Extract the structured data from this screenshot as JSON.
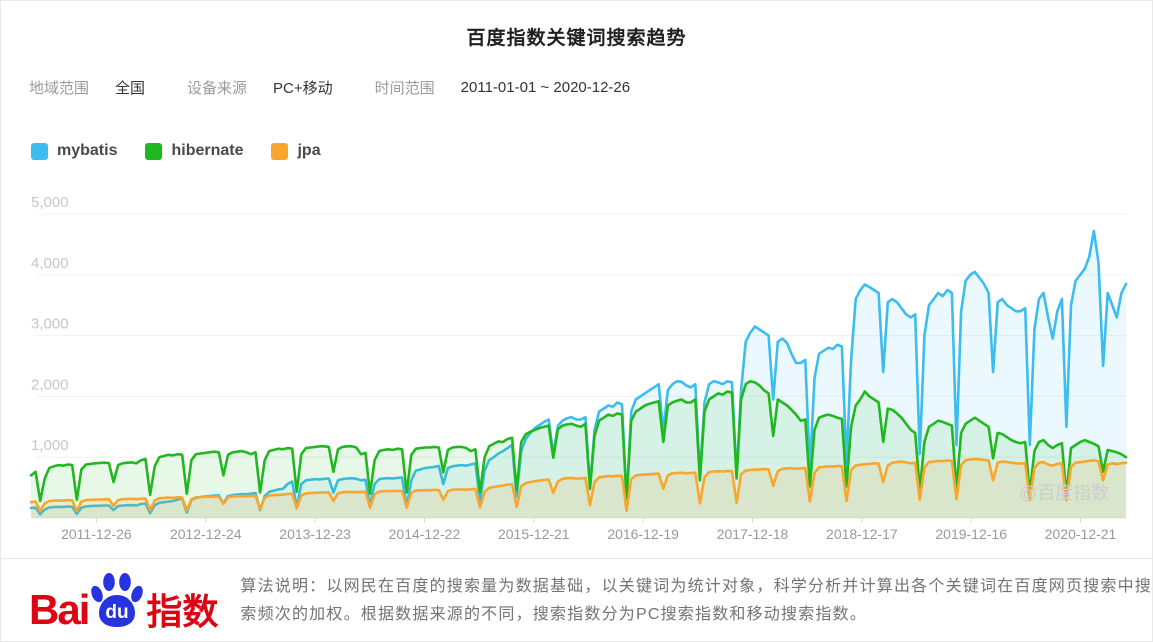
{
  "header": {
    "title": "百度指数关键词搜索趋势"
  },
  "filters": [
    {
      "label": "地域范围",
      "value": "全国"
    },
    {
      "label": "设备来源",
      "value": "PC+移动"
    },
    {
      "label": "时间范围",
      "value": "2011-01-01 ~ 2020-12-26"
    }
  ],
  "legend": [
    {
      "label": "mybatis",
      "color": "#3cbdf0"
    },
    {
      "label": "hibernate",
      "color": "#21b81f"
    },
    {
      "label": "jpa",
      "color": "#f9a62c"
    }
  ],
  "chart_data": {
    "type": "line",
    "title": "百度指数关键词搜索趋势",
    "x_range": "2011-01-01 ~ 2020-12-26",
    "x_tick_labels": [
      "2011-12-26",
      "2012-12-24",
      "2013-12-23",
      "2014-12-22",
      "2015-12-21",
      "2016-12-19",
      "2017-12-18",
      "2018-12-17",
      "2019-12-16",
      "2020-12-21"
    ],
    "y_ticks": [
      1000,
      2000,
      3000,
      4000,
      5000
    ],
    "ylim": [
      0,
      5200
    ],
    "grid": "horizontal",
    "legend_position": "top-left",
    "points_per_year": 24,
    "watermark": "@百度指数",
    "series": [
      {
        "name": "mybatis",
        "color": "#3cbdf0",
        "fill": "rgba(60,189,240,0.10)",
        "values": [
          165,
          170,
          60,
          140,
          175,
          180,
          185,
          180,
          190,
          185,
          65,
          170,
          190,
          195,
          200,
          200,
          205,
          205,
          130,
          195,
          205,
          210,
          210,
          205,
          230,
          240,
          80,
          210,
          250,
          260,
          270,
          280,
          300,
          320,
          90,
          300,
          330,
          345,
          355,
          360,
          370,
          375,
          240,
          360,
          375,
          385,
          395,
          390,
          400,
          410,
          130,
          360,
          430,
          450,
          470,
          480,
          560,
          600,
          180,
          560,
          620,
          630,
          640,
          635,
          645,
          650,
          420,
          620,
          640,
          650,
          655,
          645,
          620,
          630,
          190,
          560,
          640,
          650,
          655,
          650,
          660,
          665,
          190,
          620,
          780,
          800,
          820,
          830,
          840,
          855,
          560,
          820,
          850,
          860,
          870,
          860,
          880,
          900,
          280,
          780,
          950,
          1000,
          1060,
          1100,
          1150,
          1200,
          350,
          1100,
          1300,
          1400,
          1480,
          1530,
          1580,
          1620,
          1050,
          1520,
          1600,
          1640,
          1660,
          1620,
          1620,
          1660,
          520,
          1450,
          1750,
          1800,
          1850,
          1830,
          1900,
          1870,
          300,
          1750,
          1950,
          2000,
          2050,
          2100,
          2150,
          2200,
          1430,
          2100,
          2200,
          2250,
          2240,
          2180,
          2150,
          2200,
          700,
          1900,
          2200,
          2250,
          2230,
          2200,
          2250,
          2230,
          700,
          2100,
          2900,
          3050,
          3150,
          3100,
          3050,
          3000,
          1950,
          2900,
          2950,
          2880,
          2700,
          2550,
          2550,
          2600,
          800,
          2300,
          2700,
          2750,
          2800,
          2780,
          2850,
          2820,
          900,
          2600,
          3600,
          3750,
          3840,
          3800,
          3750,
          3700,
          2400,
          3550,
          3600,
          3550,
          3450,
          3350,
          3300,
          3350,
          1050,
          3000,
          3500,
          3600,
          3700,
          3650,
          3750,
          3700,
          1200,
          3400,
          3900,
          4000,
          4050,
          3950,
          3850,
          3700,
          2400,
          3550,
          3600,
          3500,
          3450,
          3400,
          3400,
          3450,
          1200,
          3100,
          3600,
          3700,
          3300,
          2950,
          3400,
          3600,
          1500,
          3500,
          3900,
          4000,
          4100,
          4300,
          4720,
          4200,
          2500,
          3700,
          3500,
          3300,
          3700,
          3850
        ]
      },
      {
        "name": "hibernate",
        "color": "#21b81f",
        "fill": "rgba(33,184,31,0.10)",
        "values": [
          700,
          760,
          280,
          650,
          820,
          850,
          870,
          860,
          880,
          870,
          300,
          800,
          880,
          890,
          900,
          905,
          910,
          905,
          590,
          870,
          900,
          910,
          915,
          900,
          950,
          970,
          380,
          850,
          1000,
          1020,
          1040,
          1030,
          1050,
          1040,
          400,
          950,
          1050,
          1060,
          1070,
          1080,
          1090,
          1080,
          700,
          1040,
          1080,
          1090,
          1100,
          1080,
          1050,
          1080,
          420,
          950,
          1100,
          1120,
          1140,
          1130,
          1150,
          1140,
          430,
          1050,
          1150,
          1160,
          1170,
          1180,
          1180,
          1170,
          760,
          1130,
          1170,
          1180,
          1180,
          1160,
          1050,
          1070,
          400,
          950,
          1100,
          1120,
          1130,
          1120,
          1140,
          1130,
          420,
          1040,
          1140,
          1150,
          1160,
          1160,
          1170,
          1160,
          750,
          1120,
          1160,
          1170,
          1170,
          1150,
          1100,
          1130,
          420,
          1000,
          1180,
          1220,
          1260,
          1250,
          1300,
          1320,
          450,
          1250,
          1380,
          1420,
          1450,
          1480,
          1500,
          1520,
          990,
          1460,
          1520,
          1540,
          1550,
          1520,
          1500,
          1550,
          480,
          1350,
          1600,
          1650,
          1700,
          1680,
          1720,
          1700,
          300,
          1600,
          1750,
          1800,
          1850,
          1880,
          1900,
          1920,
          1250,
          1850,
          1900,
          1930,
          1950,
          1900,
          1900,
          1950,
          620,
          1750,
          1950,
          2000,
          2050,
          2030,
          2080,
          2060,
          650,
          1950,
          2200,
          2250,
          2230,
          2180,
          2100,
          2050,
          1350,
          1950,
          1900,
          1850,
          1780,
          1700,
          1600,
          1620,
          520,
          1450,
          1650,
          1680,
          1700,
          1680,
          1650,
          1630,
          520,
          1500,
          1850,
          1950,
          2080,
          2000,
          1950,
          1900,
          1250,
          1800,
          1780,
          1720,
          1650,
          1550,
          1450,
          1400,
          450,
          1250,
          1500,
          1550,
          1600,
          1580,
          1550,
          1520,
          480,
          1400,
          1550,
          1600,
          1650,
          1600,
          1550,
          1500,
          980,
          1400,
          1380,
          1330,
          1280,
          1250,
          1230,
          1250,
          400,
          1100,
          1250,
          1280,
          1200,
          1150,
          1200,
          1230,
          380,
          1150,
          1200,
          1250,
          1280,
          1250,
          1220,
          1180,
          760,
          1120,
          1100,
          1080,
          1050,
          1000
        ]
      },
      {
        "name": "jpa",
        "color": "#f9a62c",
        "fill": "rgba(249,166,44,0.14)",
        "values": [
          260,
          270,
          120,
          240,
          280,
          285,
          290,
          285,
          295,
          290,
          120,
          270,
          295,
          300,
          305,
          305,
          310,
          308,
          200,
          295,
          310,
          312,
          315,
          310,
          315,
          320,
          130,
          290,
          325,
          330,
          335,
          330,
          340,
          335,
          130,
          310,
          340,
          345,
          350,
          350,
          355,
          352,
          230,
          340,
          355,
          358,
          360,
          355,
          360,
          365,
          150,
          330,
          370,
          375,
          380,
          385,
          395,
          400,
          160,
          370,
          405,
          410,
          415,
          418,
          420,
          422,
          280,
          405,
          425,
          428,
          430,
          425,
          430,
          432,
          170,
          390,
          436,
          440,
          444,
          442,
          446,
          444,
          170,
          415,
          450,
          455,
          460,
          458,
          462,
          460,
          300,
          440,
          465,
          468,
          470,
          465,
          470,
          480,
          175,
          430,
          495,
          510,
          525,
          535,
          550,
          560,
          185,
          520,
          575,
          590,
          605,
          615,
          625,
          635,
          415,
          600,
          645,
          655,
          660,
          650,
          650,
          660,
          210,
          590,
          670,
          680,
          690,
          685,
          695,
          690,
          120,
          640,
          700,
          710,
          715,
          720,
          725,
          730,
          480,
          700,
          735,
          740,
          745,
          735,
          740,
          745,
          240,
          670,
          755,
          765,
          770,
          765,
          775,
          770,
          250,
          720,
          780,
          790,
          795,
          800,
          805,
          800,
          530,
          770,
          810,
          815,
          820,
          810,
          815,
          820,
          270,
          740,
          830,
          840,
          850,
          845,
          855,
          850,
          280,
          790,
          865,
          875,
          885,
          890,
          900,
          895,
          590,
          860,
          910,
          920,
          930,
          915,
          900,
          910,
          300,
          830,
          920,
          930,
          940,
          935,
          945,
          940,
          310,
          870,
          950,
          960,
          970,
          965,
          955,
          945,
          620,
          910,
          930,
          920,
          910,
          900,
          895,
          905,
          290,
          820,
          910,
          920,
          880,
          860,
          890,
          900,
          290,
          840,
          910,
          920,
          930,
          940,
          950,
          930,
          620,
          880,
          900,
          890,
          900,
          910
        ]
      }
    ]
  },
  "footer": {
    "logo": {
      "bai": "Bai",
      "du": "du",
      "suffix": "指数"
    },
    "description": "算法说明：以网民在百度的搜索量为数据基础，以关键词为统计对象，科学分析并计算出各个关键词在百度网页搜索中搜索频次的加权。根据数据来源的不同，搜索指数分为PC搜索指数和移动搜索指数。"
  },
  "style": {
    "grid_color": "#f0f0f0",
    "y_label_color": "#c7c7c7",
    "x_label_color": "#999999",
    "watermark_color": "#cccccc",
    "axis_line_color": "#ededed",
    "tick_color": "#d9d9d9"
  }
}
